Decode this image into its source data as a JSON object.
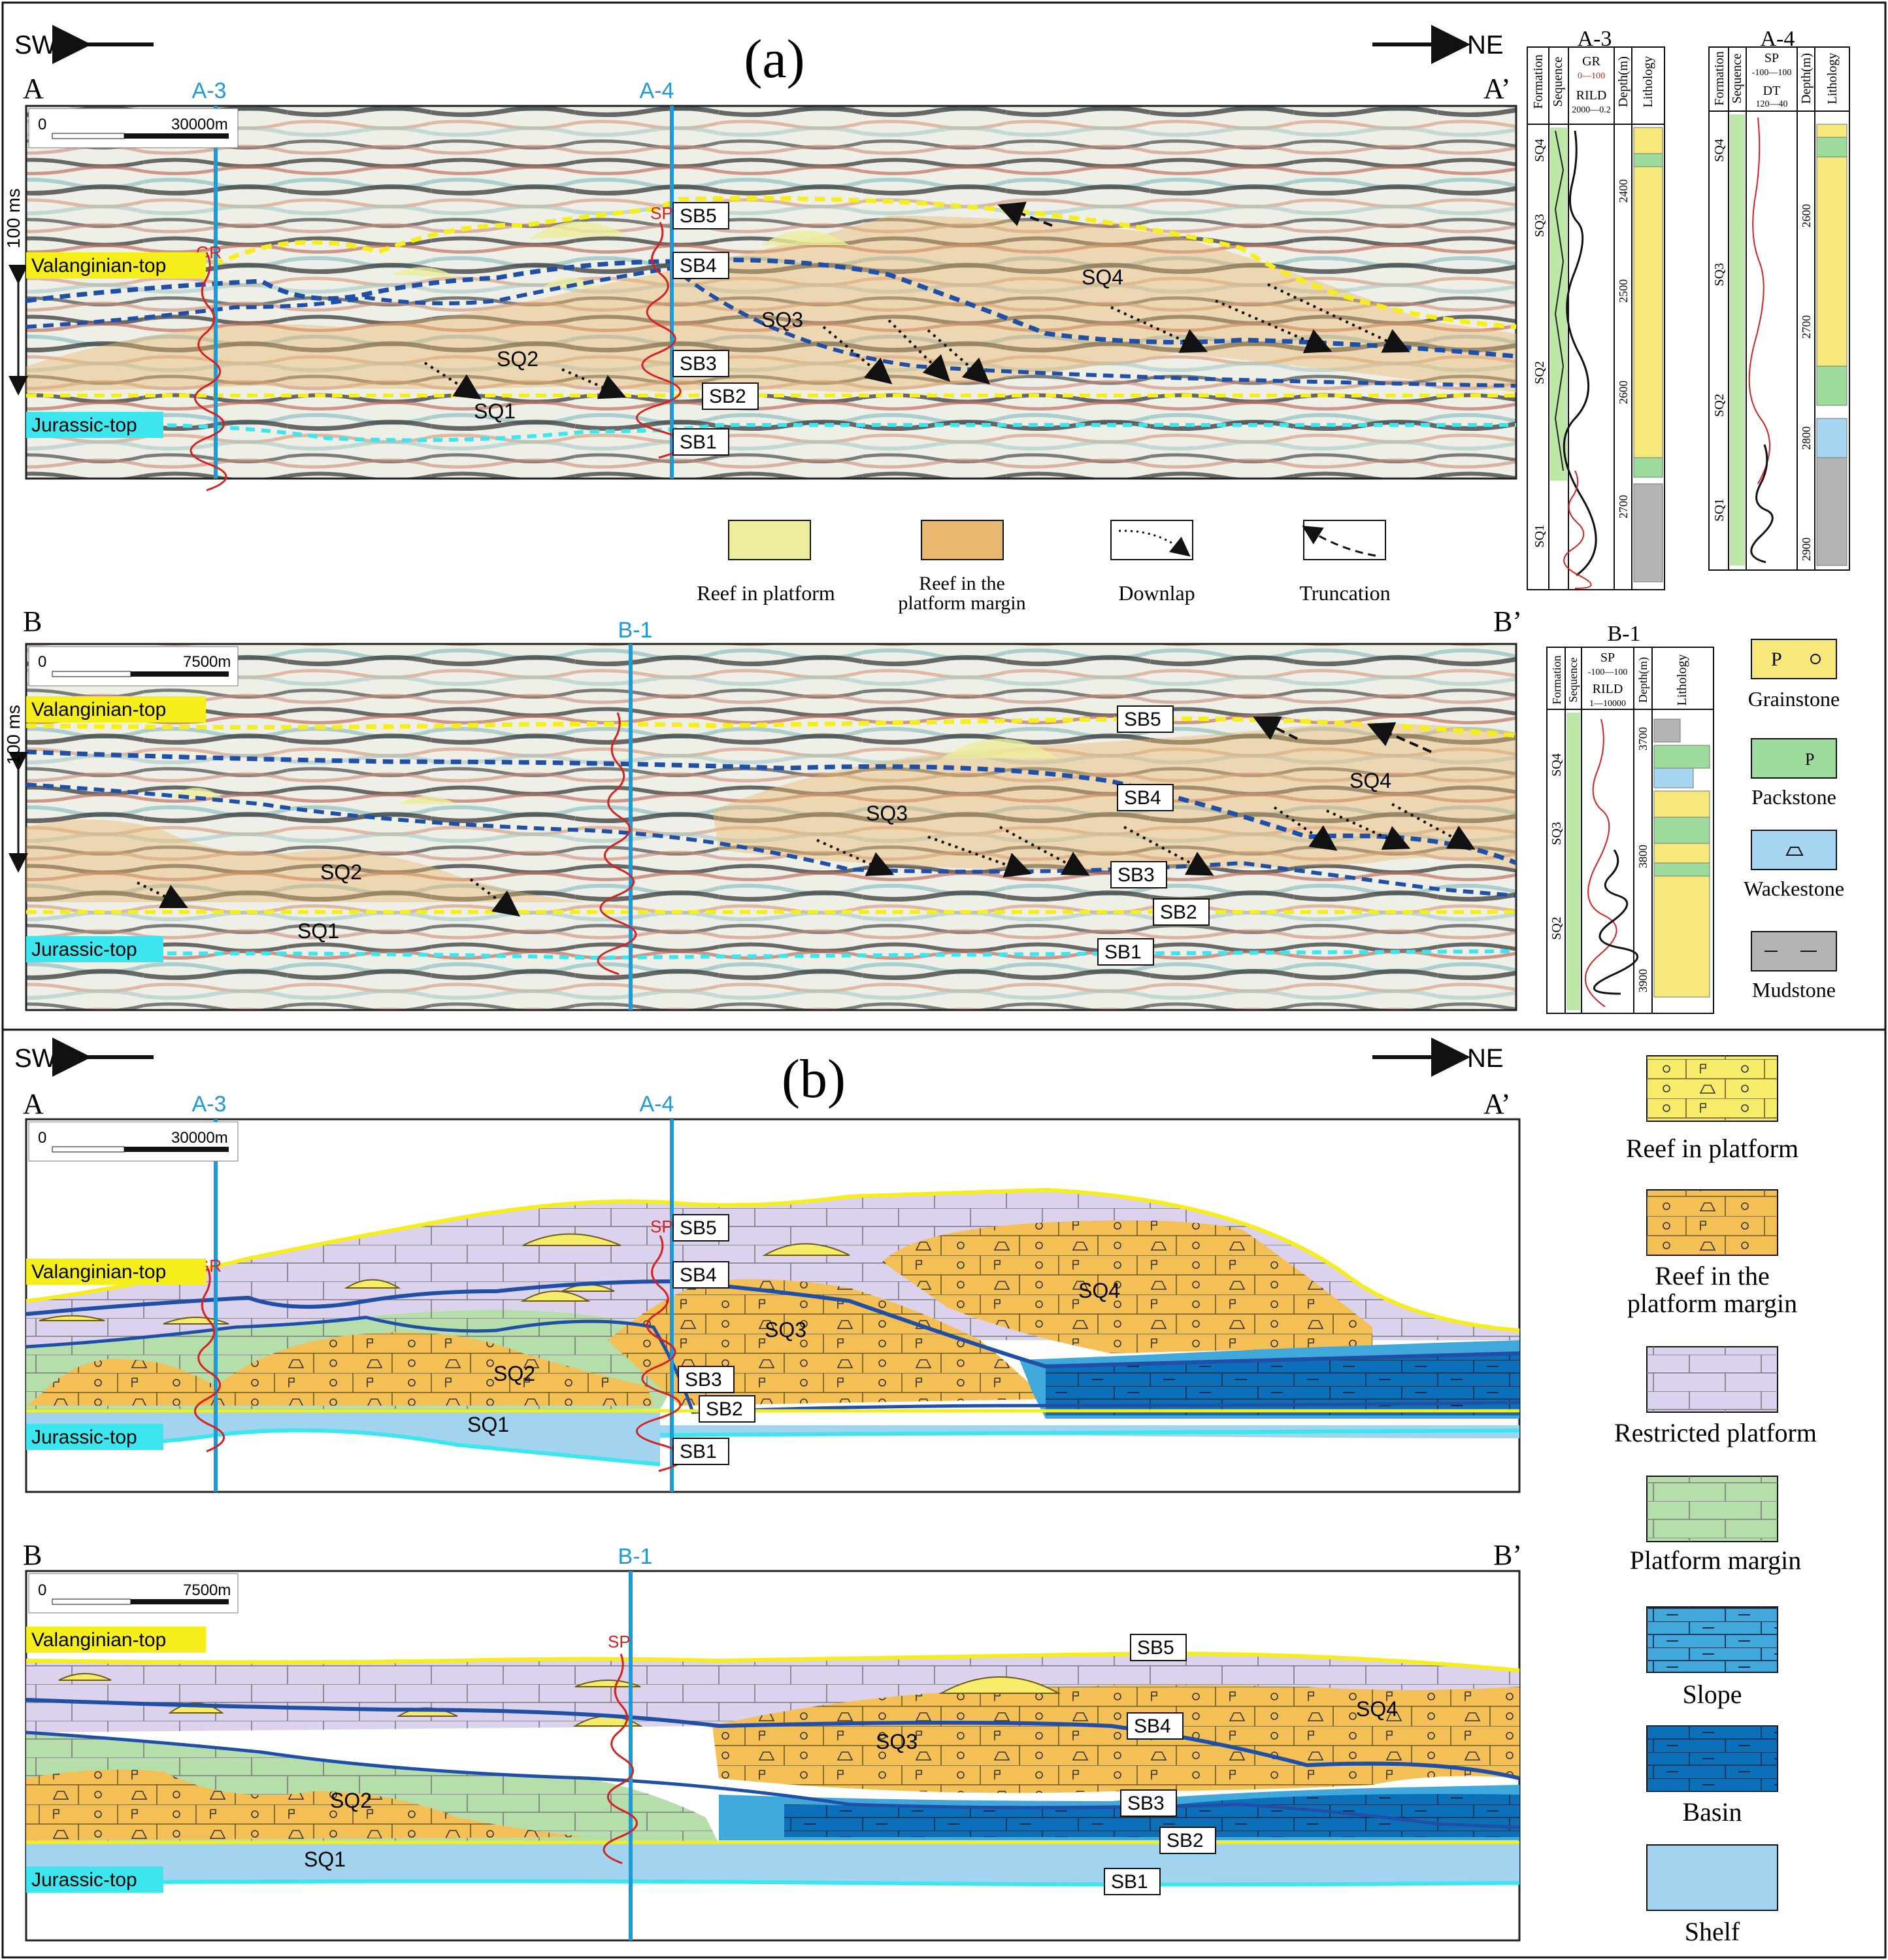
{
  "panel_a": {
    "label": "(a)",
    "direction_left": "SW",
    "direction_right": "NE",
    "section_A": {
      "start": "A",
      "end": "A’",
      "scale_zero": "0",
      "scale_length": "30000m",
      "time_scale": "100 ms",
      "wells": [
        "A-3",
        "A-4"
      ],
      "log_labels": [
        "GR",
        "SP"
      ],
      "horizons": [
        "Valanginian-top",
        "Jurassic-top"
      ],
      "boundaries": [
        "SB1",
        "SB2",
        "SB3",
        "SB4",
        "SB5"
      ],
      "sequences": [
        "SQ1",
        "SQ2",
        "SQ3",
        "SQ4"
      ]
    },
    "section_B": {
      "start": "B",
      "end": "B’",
      "scale_zero": "0",
      "scale_length": "7500m",
      "time_scale": "100 ms",
      "well": "B-1",
      "horizons": [
        "Valanginian-top",
        "Jurassic-top"
      ],
      "boundaries": [
        "SB1",
        "SB2",
        "SB3",
        "SB4",
        "SB5"
      ],
      "sequences": [
        "SQ1",
        "SQ2",
        "SQ3",
        "SQ4"
      ]
    },
    "legend": [
      {
        "label": "Reef in platform",
        "color": "#ecee9c"
      },
      {
        "label": "Reef in the\nplatform margin",
        "color": "#e8b870"
      },
      {
        "label": "Downlap",
        "symbol": "dotted-arrow"
      },
      {
        "label": "Truncation",
        "symbol": "dashed-arrow"
      }
    ],
    "well_logs": {
      "A-3": {
        "title": "A-3",
        "col_headers": [
          "Formation",
          "Sequence",
          "Depth(m)",
          "Lithology"
        ],
        "curves": [
          {
            "name": "GR",
            "range": "0—100"
          },
          {
            "name": "RILD",
            "range": "2000—0.2"
          }
        ],
        "depths": [
          "2400",
          "2500",
          "2600",
          "2700"
        ],
        "sequences": [
          "SQ4",
          "SQ3",
          "SQ2",
          "SQ1"
        ]
      },
      "A-4": {
        "title": "A-4",
        "col_headers": [
          "Formation",
          "Sequence",
          "Depth(m)",
          "Lithology"
        ],
        "curves": [
          {
            "name": "SP",
            "range": "-100—100"
          },
          {
            "name": "DT",
            "range": "120—40"
          }
        ],
        "depths": [
          "2600",
          "2700",
          "2800",
          "2900"
        ],
        "sequences": [
          "SQ4",
          "SQ3",
          "SQ2",
          "SQ1"
        ]
      },
      "B-1": {
        "title": "B-1",
        "col_headers": [
          "Formation",
          "Sequence",
          "Depth(m)",
          "Lithology"
        ],
        "curves": [
          {
            "name": "SP",
            "range": "-100—100"
          },
          {
            "name": "RILD",
            "range": "1—10000"
          }
        ],
        "depths": [
          "3700",
          "3800",
          "3900"
        ],
        "sequences": [
          "SQ4",
          "SQ3",
          "SQ2"
        ]
      }
    },
    "lithology_legend": [
      {
        "label": "Grainstone",
        "color": "#f6e87a"
      },
      {
        "label": "Packstone",
        "color": "#9edc9e"
      },
      {
        "label": "Wackestone",
        "color": "#a6d6f2"
      },
      {
        "label": "Mudstone",
        "color": "#b4b4b4"
      }
    ]
  },
  "panel_b": {
    "label": "(b)",
    "direction_left": "SW",
    "direction_right": "NE",
    "section_A": {
      "start": "A",
      "end": "A’",
      "scale_zero": "0",
      "scale_length": "30000m",
      "wells": [
        "A-3",
        "A-4"
      ],
      "log_labels": [
        "GR",
        "SP"
      ],
      "horizons": [
        "Valanginian-top",
        "Jurassic-top"
      ],
      "boundaries": [
        "SB1",
        "SB2",
        "SB3",
        "SB4",
        "SB5"
      ],
      "sequences": [
        "SQ1",
        "SQ2",
        "SQ3",
        "SQ4"
      ]
    },
    "section_B": {
      "start": "B",
      "end": "B’",
      "scale_zero": "0",
      "scale_length": "7500m",
      "well": "B-1",
      "log_label": "SP",
      "horizons": [
        "Valanginian-top",
        "Jurassic-top"
      ],
      "boundaries": [
        "SB1",
        "SB2",
        "SB3",
        "SB4",
        "SB5"
      ],
      "sequences": [
        "SQ1",
        "SQ2",
        "SQ3",
        "SQ4"
      ]
    },
    "facies_legend": [
      {
        "label": "Reef in platform",
        "color": "#f6ec6a"
      },
      {
        "label": "Reef in the\nplatform margin",
        "color": "#f4c055"
      },
      {
        "label": "Restricted platform",
        "color": "#dcd2ee"
      },
      {
        "label": "Platform margin",
        "color": "#b6deaa"
      },
      {
        "label": "Slope",
        "color": "#41a8dc"
      },
      {
        "label": "Basin",
        "color": "#0c6fba"
      },
      {
        "label": "Shelf",
        "color": "#a2d4ef"
      }
    ]
  },
  "colors": {
    "valanginian": "#f5ee1a",
    "jurassic": "#3be6ee",
    "well_line": "#1e9ad6",
    "sb_blue": "#1f4fa6"
  }
}
